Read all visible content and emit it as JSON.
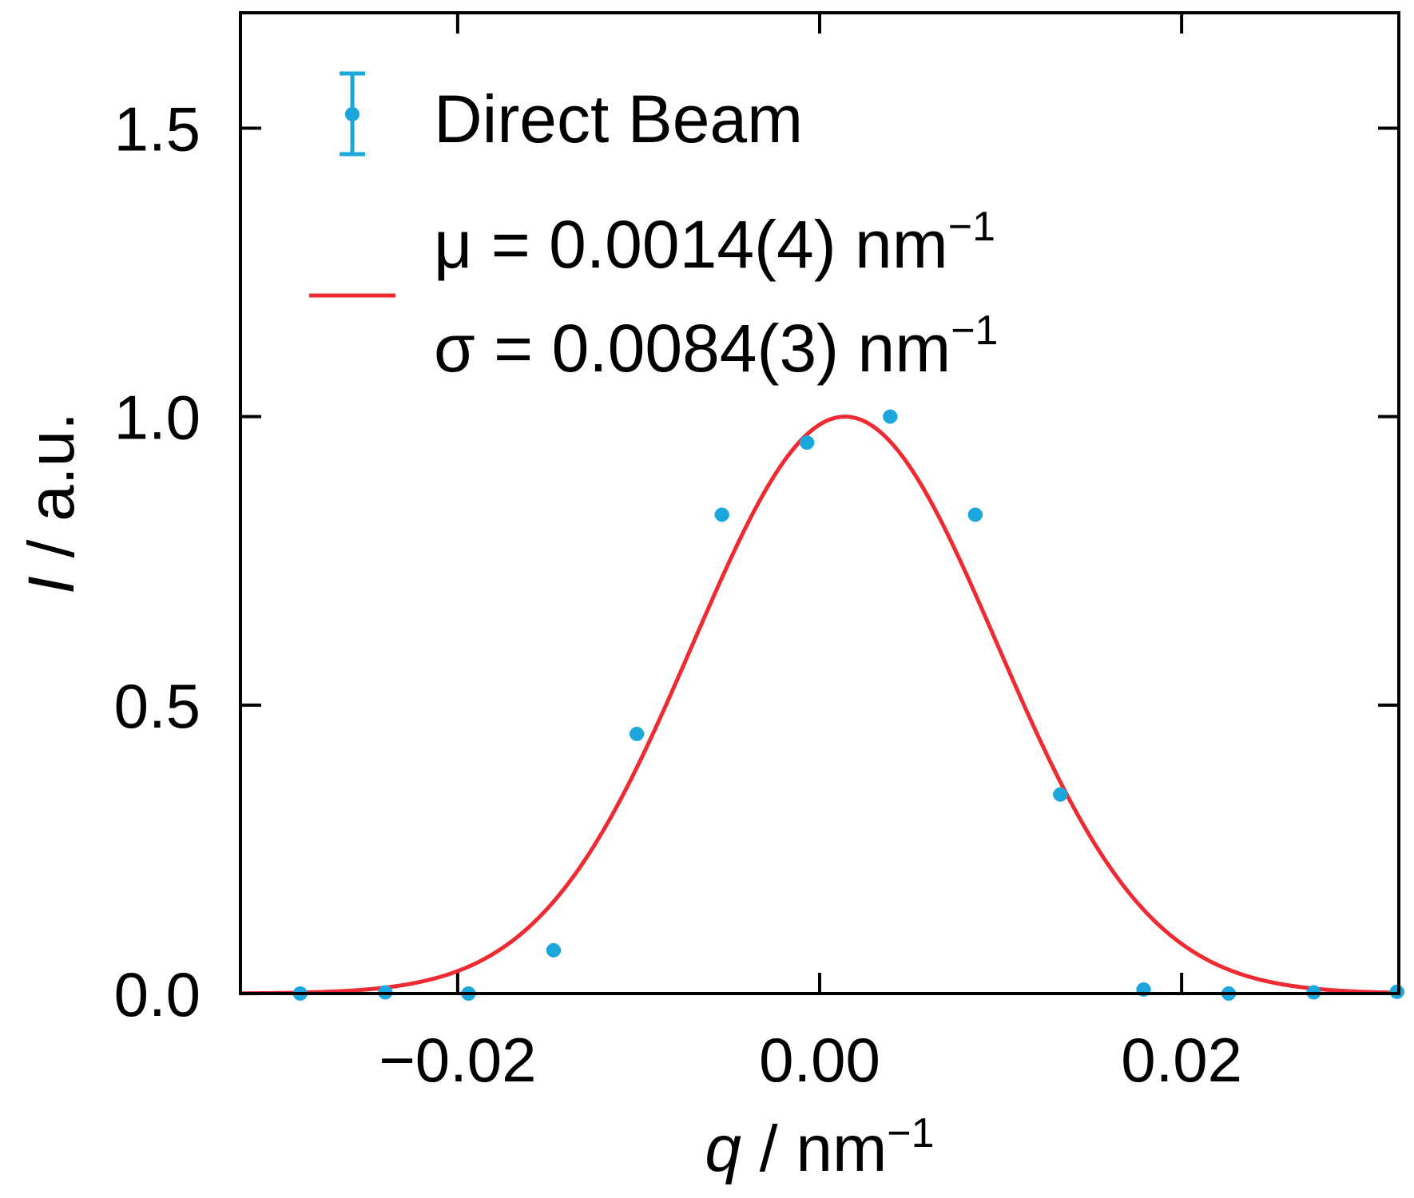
{
  "chart_data": {
    "type": "scatter",
    "xlabel_var": "q",
    "xlabel_unit": " / nm",
    "xlabel_exp": "−1",
    "ylabel_var": "I",
    "ylabel_unit": " / a.u.",
    "xlim": [
      -0.032,
      0.032
    ],
    "ylim": [
      0.0,
      1.7
    ],
    "xticks": [
      -0.02,
      0.0,
      0.02
    ],
    "xtick_labels": [
      "−0.02",
      "0.00",
      "0.02"
    ],
    "yticks": [
      0.0,
      0.5,
      1.0,
      1.5
    ],
    "ytick_labels": [
      "0.0",
      "0.5",
      "1.0",
      "1.5"
    ],
    "grid": false,
    "legend_position": "top-left",
    "series": [
      {
        "name": "Direct Beam",
        "kind": "errorbar",
        "color": "#1ba6dc",
        "x": [
          -0.0287,
          -0.024,
          -0.0194,
          -0.0147,
          -0.0101,
          -0.0054,
          -0.0007,
          0.0039,
          0.0086,
          0.0133,
          0.0179,
          0.0226,
          0.0273,
          0.0319
        ],
        "y": [
          0.0,
          0.002,
          0.0,
          0.075,
          0.45,
          0.83,
          0.955,
          1.0,
          0.83,
          0.345,
          0.007,
          0.0,
          0.002,
          0.003
        ],
        "xerr": [
          0.0004,
          0.0004,
          0.0004,
          0.0004,
          0.0004,
          0.0004,
          0.0004,
          0.0004,
          0.0004,
          0.0004,
          0.0004,
          0.0004,
          0.0004,
          0.0004
        ]
      },
      {
        "kind": "gaussian_fit",
        "color": "#ee2a32",
        "mu": 0.0014,
        "sigma": 0.0084,
        "amplitude": 1.0
      }
    ],
    "legend": [
      {
        "label": "Direct Beam",
        "series": 0
      },
      {
        "lines": [
          {
            "text": "μ = 0.0014(4) nm",
            "exp": "−1"
          },
          {
            "text": "σ = 0.0084(3) nm",
            "exp": "−1"
          }
        ],
        "series": 1
      }
    ]
  }
}
